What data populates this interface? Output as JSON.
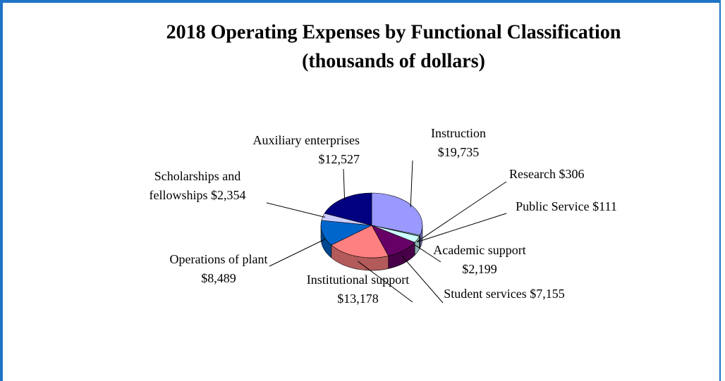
{
  "chart_data": {
    "type": "pie3d",
    "title": "2018 Operating Expenses by Functional Classification",
    "subtitle": "(thousands of dollars)",
    "categories": [
      "Instruction",
      "Research",
      "Public Service",
      "Academic support",
      "Student services",
      "Institutional support",
      "Operations of plant",
      "Scholarships and fellowships",
      "Auxiliary enterprises"
    ],
    "values": [
      19735,
      306,
      111,
      2199,
      7155,
      13178,
      8489,
      2354,
      12527
    ],
    "value_labels": [
      "$19,735",
      "$306",
      "$111",
      "$2,199",
      "$7,155",
      "$13,178",
      "$8,489",
      "$2,354",
      "$12,527"
    ],
    "colors": [
      "#9999ff",
      "#ccffff",
      "#ccffff",
      "#ccffff",
      "#660066",
      "#ff8080",
      "#0066cc",
      "#ccccff",
      "#000080"
    ]
  }
}
